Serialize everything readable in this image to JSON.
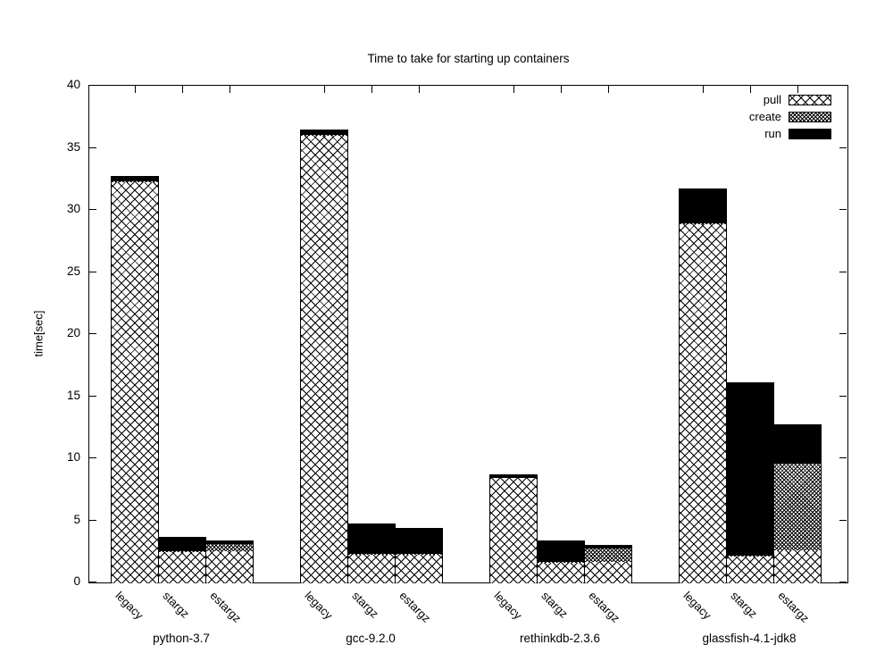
{
  "title": "Time to take for starting up containers",
  "ylabel": "time[sec]",
  "colors": {
    "foreground": "#000000",
    "background": "#ffffff"
  },
  "chart_data": {
    "type": "bar",
    "stacked": true,
    "title": "Time to take for starting up containers",
    "ylabel": "time[sec]",
    "ylim": [
      0,
      40
    ],
    "yticks": [
      0,
      5,
      10,
      15,
      20,
      25,
      30,
      35,
      40
    ],
    "grid": false,
    "legend_position": "top-right-inside",
    "legend_order": [
      "pull",
      "create",
      "run"
    ],
    "groups": [
      "python-3.7",
      "gcc-9.2.0",
      "rethinkdb-2.3.6",
      "glassfish-4.1-jdk8"
    ],
    "bar_labels": [
      "legacy",
      "stargz",
      "estargz"
    ],
    "categories": [
      "python-3.7 legacy",
      "python-3.7 stargz",
      "python-3.7 estargz",
      "gcc-9.2.0 legacy",
      "gcc-9.2.0 stargz",
      "gcc-9.2.0 estargz",
      "rethinkdb-2.3.6 legacy",
      "rethinkdb-2.3.6 stargz",
      "rethinkdb-2.3.6 estargz",
      "glassfish-4.1-jdk8 legacy",
      "glassfish-4.1-jdk8 stargz",
      "glassfish-4.1-jdk8 estargz"
    ],
    "series": [
      {
        "name": "pull",
        "pattern": "crosshatch",
        "values": [
          32.3,
          2.5,
          2.55,
          36.1,
          2.3,
          2.3,
          8.45,
          1.65,
          1.7,
          28.9,
          2.2,
          2.6
        ]
      },
      {
        "name": "create",
        "pattern": "fine-hatch",
        "values": [
          0.05,
          0.05,
          0.55,
          0.05,
          0.05,
          0.05,
          0.05,
          0.05,
          1.1,
          0.1,
          0.05,
          7.0
        ]
      },
      {
        "name": "run",
        "pattern": "solid-black",
        "values": [
          0.35,
          1.1,
          0.25,
          0.35,
          2.4,
          2.05,
          0.2,
          1.65,
          0.2,
          2.7,
          13.9,
          3.1
        ]
      }
    ],
    "totals": [
      32.7,
      3.65,
      3.35,
      36.5,
      4.75,
      4.4,
      8.7,
      3.35,
      3.0,
      31.7,
      16.15,
      12.7
    ]
  }
}
